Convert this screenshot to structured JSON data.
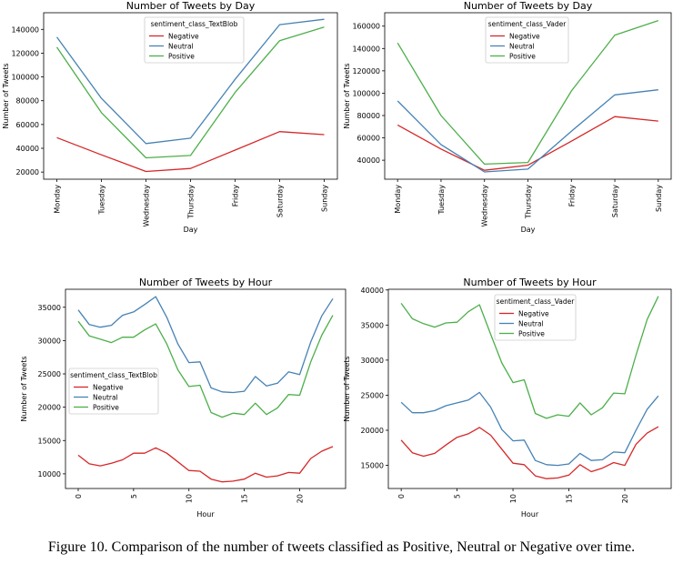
{
  "caption": "Figure 10. Comparison of the number of tweets classified as Positive, Neutral or Negative over time.",
  "colors": {
    "Negative": "#d62728",
    "Neutral": "#4682b4",
    "Positive": "#4daf4a"
  },
  "chart_data": [
    {
      "type": "line",
      "title": "Number of Tweets by Day",
      "xlabel": "Day",
      "ylabel": "Number of Tweets",
      "categories": [
        "Monday",
        "Tuesday",
        "Wednesday",
        "Thursday",
        "Friday",
        "Saturday",
        "Sunday"
      ],
      "ylim": [
        14000,
        154000
      ],
      "yticks": [
        20000,
        40000,
        60000,
        80000,
        100000,
        120000,
        140000
      ],
      "legend_title": "sentiment_class_TextBlob",
      "legend_position": "top-center",
      "series": [
        {
          "name": "Negative",
          "values": [
            49000,
            34500,
            20500,
            23000,
            38500,
            54000,
            51500
          ]
        },
        {
          "name": "Neutral",
          "values": [
            133500,
            82000,
            44000,
            48500,
            98000,
            144000,
            148500
          ]
        },
        {
          "name": "Positive",
          "values": [
            125000,
            70000,
            32000,
            34000,
            87000,
            130500,
            142000
          ]
        }
      ]
    },
    {
      "type": "line",
      "title": "Number of Tweets by Day",
      "xlabel": "Day",
      "ylabel": "Number of Tweets",
      "categories": [
        "Monday",
        "Tuesday",
        "Wednesday",
        "Thursday",
        "Friday",
        "Saturday",
        "Sunday"
      ],
      "ylim": [
        23000,
        172000
      ],
      "yticks": [
        40000,
        60000,
        80000,
        100000,
        120000,
        140000,
        160000
      ],
      "legend_title": "sentiment_class_Vader",
      "legend_position": "top-center",
      "series": [
        {
          "name": "Negative",
          "values": [
            71500,
            50000,
            31000,
            35500,
            57000,
            79000,
            75000
          ]
        },
        {
          "name": "Neutral",
          "values": [
            93000,
            54000,
            29500,
            32000,
            66000,
            98500,
            103000
          ]
        },
        {
          "name": "Positive",
          "values": [
            145000,
            80000,
            36500,
            38000,
            102000,
            152000,
            165000
          ]
        }
      ]
    },
    {
      "type": "line",
      "title": "Number of Tweets by Hour",
      "xlabel": "Hour",
      "ylabel": "Number of Tweets",
      "x": [
        0,
        1,
        2,
        3,
        4,
        5,
        6,
        7,
        8,
        9,
        10,
        11,
        12,
        13,
        14,
        15,
        16,
        17,
        18,
        19,
        20,
        21,
        22,
        23
      ],
      "xlim": [
        -1.15,
        24.15
      ],
      "xticks": [
        0,
        5,
        10,
        15,
        20
      ],
      "ylim": [
        7800,
        37700
      ],
      "yticks": [
        10000,
        15000,
        20000,
        25000,
        30000,
        35000
      ],
      "legend_title": "sentiment_class_TextBlob",
      "legend_position": "center-left",
      "series": [
        {
          "name": "Negative",
          "values": [
            12800,
            11500,
            11200,
            11600,
            12100,
            13100,
            13100,
            13900,
            13100,
            11800,
            10500,
            10400,
            9200,
            8800,
            8900,
            9200,
            10100,
            9500,
            9700,
            10200,
            10100,
            12300,
            13400,
            14100
          ]
        },
        {
          "name": "Neutral",
          "values": [
            34600,
            32400,
            32000,
            32300,
            33800,
            34300,
            35400,
            36600,
            33500,
            29500,
            26700,
            26800,
            22900,
            22300,
            22200,
            22400,
            24600,
            23200,
            23600,
            25300,
            24900,
            29800,
            33700,
            36300
          ]
        },
        {
          "name": "Positive",
          "values": [
            32900,
            30700,
            30200,
            29700,
            30500,
            30500,
            31600,
            32500,
            29500,
            25600,
            23100,
            23300,
            19200,
            18500,
            19100,
            18900,
            20600,
            18900,
            19900,
            21900,
            21800,
            26800,
            30800,
            33800
          ]
        }
      ]
    },
    {
      "type": "line",
      "title": "Number of Tweets by Hour",
      "xlabel": "Hour",
      "ylabel": "Number of Tweets",
      "x": [
        0,
        1,
        2,
        3,
        4,
        5,
        6,
        7,
        8,
        9,
        10,
        11,
        12,
        13,
        14,
        15,
        16,
        17,
        18,
        19,
        20,
        21,
        22,
        23
      ],
      "xlim": [
        -1.15,
        24.15
      ],
      "xticks": [
        0,
        5,
        10,
        15,
        20
      ],
      "ylim": [
        11700,
        40100
      ],
      "yticks": [
        15000,
        20000,
        25000,
        30000,
        35000,
        40000
      ],
      "legend_title": "sentiment_class_Vader",
      "legend_position": "top-center",
      "series": [
        {
          "name": "Negative",
          "values": [
            18600,
            16800,
            16300,
            16700,
            17900,
            19000,
            19500,
            20400,
            19300,
            17300,
            15300,
            15100,
            13500,
            13100,
            13200,
            13600,
            15100,
            14100,
            14600,
            15400,
            15000,
            18000,
            19600,
            20500
          ]
        },
        {
          "name": "Neutral",
          "values": [
            24000,
            22500,
            22500,
            22800,
            23500,
            23900,
            24300,
            25400,
            23300,
            20100,
            18500,
            18600,
            15700,
            15100,
            15000,
            15200,
            16700,
            15700,
            15800,
            16900,
            16800,
            20000,
            23000,
            24900
          ]
        },
        {
          "name": "Positive",
          "values": [
            38100,
            35900,
            35200,
            34700,
            35300,
            35400,
            36900,
            37900,
            33700,
            29600,
            26800,
            27200,
            22400,
            21700,
            22200,
            22000,
            23900,
            22200,
            23200,
            25300,
            25200,
            30700,
            35800,
            39100
          ]
        }
      ]
    }
  ]
}
